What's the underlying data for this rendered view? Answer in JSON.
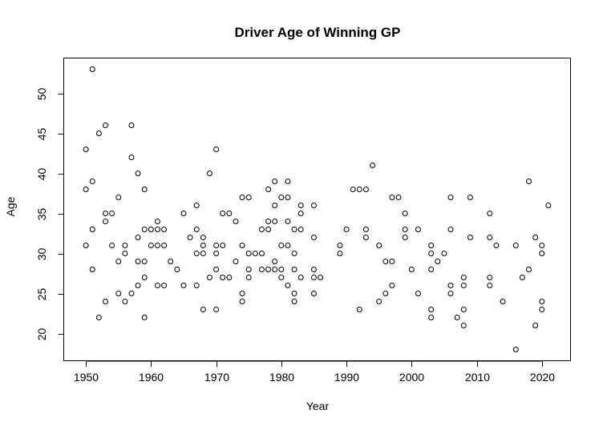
{
  "chart_data": {
    "type": "scatter",
    "title": "Driver Age of Winning GP",
    "xlabel": "Year",
    "ylabel": "Age",
    "xlim": [
      1946.6,
      2024.4
    ],
    "ylim": [
      16.6,
      54.4
    ],
    "xticks": [
      1950,
      1960,
      1970,
      1980,
      1990,
      2000,
      2010,
      2020
    ],
    "yticks": [
      20,
      25,
      30,
      35,
      40,
      45,
      50
    ],
    "grid": false,
    "legend": "none",
    "points": [
      [
        1950,
        43
      ],
      [
        1950,
        38
      ],
      [
        1950,
        31
      ],
      [
        1951,
        53
      ],
      [
        1951,
        39
      ],
      [
        1951,
        33
      ],
      [
        1951,
        28
      ],
      [
        1952,
        45
      ],
      [
        1952,
        22
      ],
      [
        1953,
        46
      ],
      [
        1953,
        35
      ],
      [
        1953,
        34
      ],
      [
        1953,
        24
      ],
      [
        1954,
        35
      ],
      [
        1954,
        31
      ],
      [
        1955,
        37
      ],
      [
        1955,
        29
      ],
      [
        1955,
        25
      ],
      [
        1956,
        31
      ],
      [
        1956,
        30
      ],
      [
        1956,
        24
      ],
      [
        1957,
        46
      ],
      [
        1957,
        42
      ],
      [
        1957,
        25
      ],
      [
        1958,
        40
      ],
      [
        1958,
        32
      ],
      [
        1958,
        29
      ],
      [
        1958,
        26
      ],
      [
        1959,
        38
      ],
      [
        1959,
        33
      ],
      [
        1959,
        29
      ],
      [
        1959,
        27
      ],
      [
        1959,
        22
      ],
      [
        1960,
        33
      ],
      [
        1960,
        31
      ],
      [
        1961,
        34
      ],
      [
        1961,
        33
      ],
      [
        1961,
        31
      ],
      [
        1961,
        26
      ],
      [
        1962,
        33
      ],
      [
        1962,
        31
      ],
      [
        1962,
        26
      ],
      [
        1963,
        29
      ],
      [
        1964,
        28
      ],
      [
        1965,
        35
      ],
      [
        1965,
        26
      ],
      [
        1966,
        32
      ],
      [
        1967,
        36
      ],
      [
        1967,
        33
      ],
      [
        1967,
        30
      ],
      [
        1967,
        26
      ],
      [
        1968,
        32
      ],
      [
        1968,
        31
      ],
      [
        1968,
        30
      ],
      [
        1968,
        23
      ],
      [
        1969,
        40
      ],
      [
        1969,
        27
      ],
      [
        1970,
        43
      ],
      [
        1970,
        31
      ],
      [
        1970,
        30
      ],
      [
        1970,
        28
      ],
      [
        1970,
        23
      ],
      [
        1971,
        35
      ],
      [
        1971,
        31
      ],
      [
        1971,
        27
      ],
      [
        1972,
        35
      ],
      [
        1972,
        27
      ],
      [
        1973,
        34
      ],
      [
        1973,
        29
      ],
      [
        1974,
        37
      ],
      [
        1974,
        31
      ],
      [
        1974,
        25
      ],
      [
        1974,
        24
      ],
      [
        1975,
        37
      ],
      [
        1975,
        30
      ],
      [
        1975,
        28
      ],
      [
        1975,
        27
      ],
      [
        1976,
        30
      ],
      [
        1977,
        33
      ],
      [
        1977,
        30
      ],
      [
        1977,
        28
      ],
      [
        1978,
        38
      ],
      [
        1978,
        34
      ],
      [
        1978,
        33
      ],
      [
        1978,
        28
      ],
      [
        1979,
        39
      ],
      [
        1979,
        36
      ],
      [
        1979,
        34
      ],
      [
        1979,
        29
      ],
      [
        1979,
        28
      ],
      [
        1980,
        37
      ],
      [
        1980,
        31
      ],
      [
        1980,
        28
      ],
      [
        1980,
        27
      ],
      [
        1981,
        39
      ],
      [
        1981,
        37
      ],
      [
        1981,
        34
      ],
      [
        1981,
        31
      ],
      [
        1981,
        26
      ],
      [
        1982,
        33
      ],
      [
        1982,
        30
      ],
      [
        1982,
        28
      ],
      [
        1982,
        25
      ],
      [
        1982,
        24
      ],
      [
        1983,
        36
      ],
      [
        1983,
        35
      ],
      [
        1983,
        33
      ],
      [
        1983,
        27
      ],
      [
        1985,
        36
      ],
      [
        1985,
        32
      ],
      [
        1985,
        28
      ],
      [
        1985,
        27
      ],
      [
        1985,
        25
      ],
      [
        1986,
        27
      ],
      [
        1989,
        31
      ],
      [
        1989,
        30
      ],
      [
        1990,
        33
      ],
      [
        1991,
        38
      ],
      [
        1992,
        38
      ],
      [
        1992,
        23
      ],
      [
        1993,
        38
      ],
      [
        1993,
        33
      ],
      [
        1993,
        32
      ],
      [
        1994,
        41
      ],
      [
        1995,
        31
      ],
      [
        1995,
        24
      ],
      [
        1996,
        29
      ],
      [
        1996,
        25
      ],
      [
        1997,
        37
      ],
      [
        1997,
        29
      ],
      [
        1997,
        26
      ],
      [
        1998,
        37
      ],
      [
        1999,
        35
      ],
      [
        1999,
        33
      ],
      [
        1999,
        32
      ],
      [
        2000,
        28
      ],
      [
        2001,
        33
      ],
      [
        2001,
        25
      ],
      [
        2003,
        31
      ],
      [
        2003,
        30
      ],
      [
        2003,
        28
      ],
      [
        2003,
        23
      ],
      [
        2003,
        22
      ],
      [
        2004,
        29
      ],
      [
        2005,
        30
      ],
      [
        2006,
        37
      ],
      [
        2006,
        33
      ],
      [
        2006,
        26
      ],
      [
        2006,
        25
      ],
      [
        2007,
        22
      ],
      [
        2008,
        27
      ],
      [
        2008,
        26
      ],
      [
        2008,
        23
      ],
      [
        2008,
        21
      ],
      [
        2009,
        37
      ],
      [
        2009,
        32
      ],
      [
        2012,
        35
      ],
      [
        2012,
        32
      ],
      [
        2012,
        27
      ],
      [
        2012,
        26
      ],
      [
        2013,
        31
      ],
      [
        2014,
        24
      ],
      [
        2016,
        31
      ],
      [
        2016,
        18
      ],
      [
        2017,
        27
      ],
      [
        2018,
        39
      ],
      [
        2018,
        28
      ],
      [
        2019,
        32
      ],
      [
        2019,
        21
      ],
      [
        2020,
        31
      ],
      [
        2020,
        30
      ],
      [
        2020,
        24
      ],
      [
        2020,
        23
      ],
      [
        2021,
        36
      ]
    ]
  }
}
